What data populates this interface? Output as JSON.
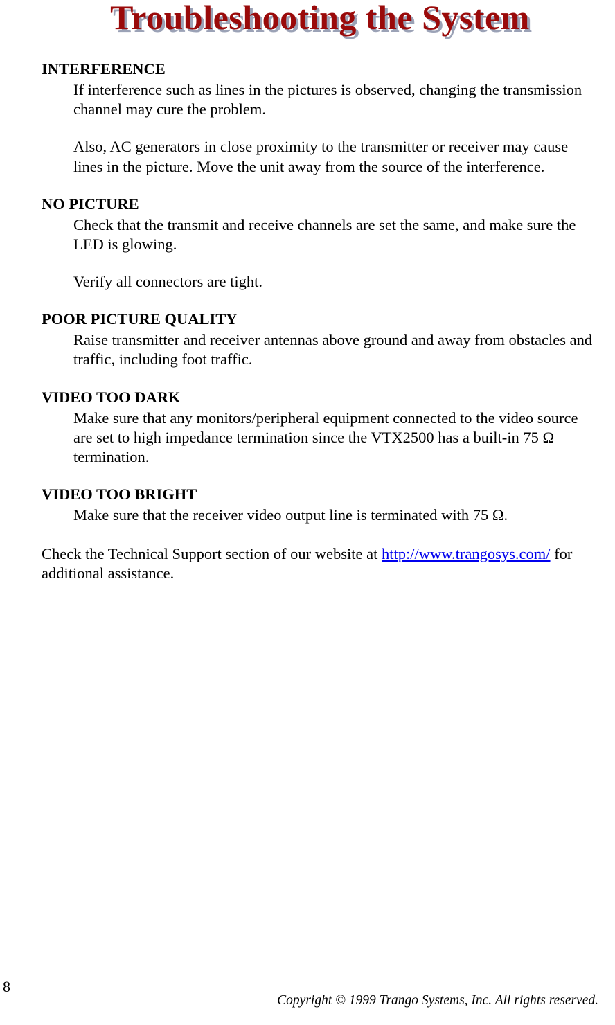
{
  "title": "Troubleshooting the System",
  "colors": {
    "title_fg": "#9a0a0a",
    "title_shadow": "#9ba2b6",
    "body_text": "#000000",
    "link": "#0000ee",
    "background": "#ffffff"
  },
  "typography": {
    "title_fontsize_pt": 38,
    "title_weight": "bold",
    "body_fontsize_pt": 17,
    "body_family": "Times New Roman"
  },
  "sections": [
    {
      "heading": "INTERFERENCE",
      "paragraphs": [
        "If interference such as lines in the pictures is observed, changing the transmission channel may cure the problem.",
        "Also, AC generators in close proximity to the transmitter or receiver may cause lines in the picture.  Move the unit away from the source of the interference."
      ]
    },
    {
      "heading": "NO PICTURE",
      "paragraphs": [
        "Check that the transmit and receive channels are set the same, and make sure the LED is glowing.",
        "Verify all connectors are tight."
      ]
    },
    {
      "heading": "POOR PICTURE QUALITY",
      "paragraphs": [
        "Raise transmitter and receiver antennas above ground and away from obstacles and traffic, including foot traffic."
      ]
    },
    {
      "heading": "VIDEO TOO DARK",
      "paragraphs": [
        "Make sure that any monitors/peripheral equipment connected to the video source are set to high impedance termination since the VTX2500 has a built-in 75 Ω termination."
      ]
    },
    {
      "heading": "VIDEO TOO BRIGHT",
      "paragraphs": [
        "Make sure that the receiver video output line is terminated with 75 Ω."
      ]
    }
  ],
  "tail": {
    "pre": "Check the Technical Support section of our website at ",
    "link_text": "http://www.trangosys.com/",
    "post": " for additional assistance."
  },
  "footer": {
    "page_number": "8",
    "copyright": "Copyright © 1999 Trango Systems, Inc.  All rights reserved."
  }
}
